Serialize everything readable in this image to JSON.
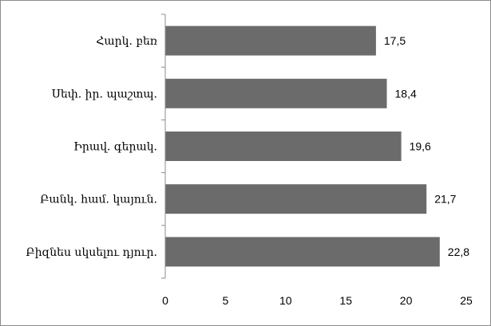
{
  "chart_data": {
    "type": "bar",
    "orientation": "horizontal",
    "categories": [
      "Հարկ. բեռ",
      "Սեփ. իր. պաշտպ.",
      "Իրավ. գերակ.",
      "Բանկ. համ. կայուն.",
      "Բիզնես սկսելու դյուր."
    ],
    "values": [
      17.5,
      18.4,
      19.6,
      21.7,
      22.8
    ],
    "value_labels": [
      "17,5",
      "18,4",
      "19,6",
      "21,7",
      "22,8"
    ],
    "xlim": [
      0,
      25
    ],
    "xticks": [
      "0",
      "5",
      "10",
      "15",
      "20",
      "25"
    ],
    "title": "",
    "xlabel": "",
    "ylabel": "",
    "grid": false,
    "legend": "none",
    "bar_color": "#6b6b6b"
  }
}
